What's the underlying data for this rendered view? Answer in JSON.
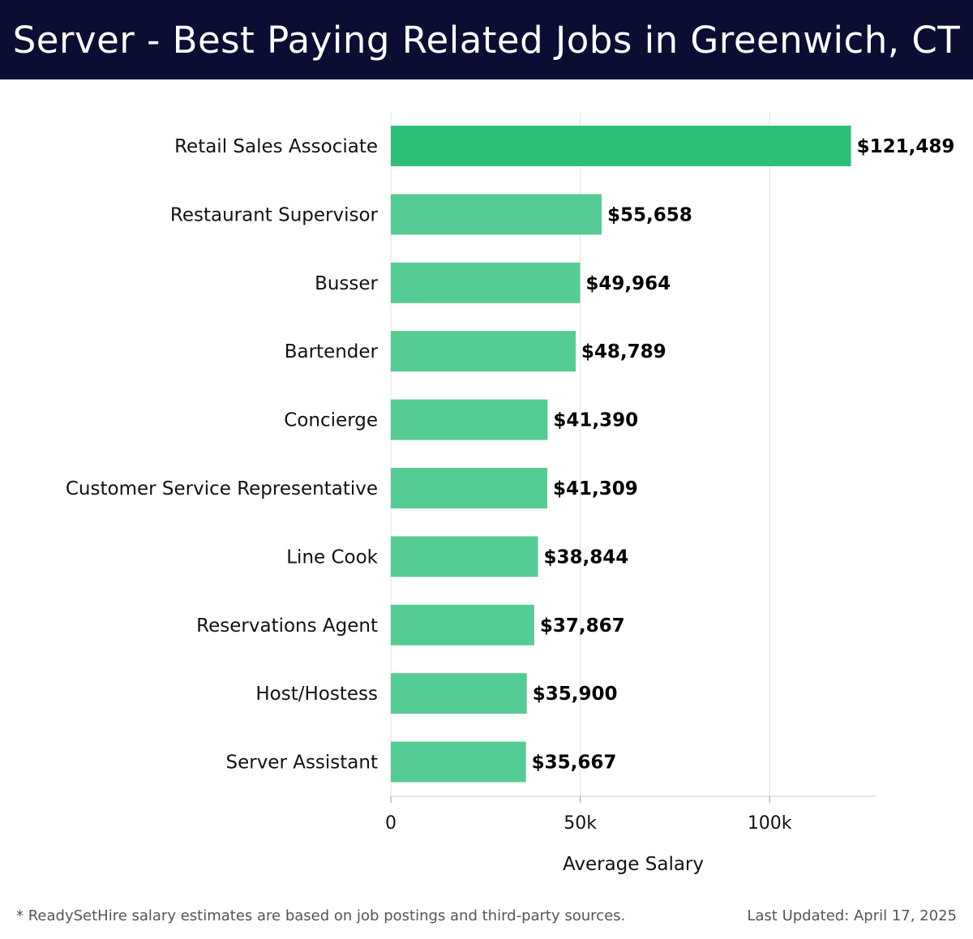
{
  "header": {
    "title": "Server - Best Paying Related Jobs in Greenwich, CT"
  },
  "chart_data": {
    "type": "bar",
    "orientation": "horizontal",
    "categories": [
      "Retail Sales Associate",
      "Restaurant Supervisor",
      "Busser",
      "Bartender",
      "Concierge",
      "Customer Service Representative",
      "Line Cook",
      "Reservations Agent",
      "Host/Hostess",
      "Server Assistant"
    ],
    "values": [
      121489,
      55658,
      49964,
      48789,
      41390,
      41309,
      38844,
      37867,
      35900,
      35667
    ],
    "value_labels": [
      "$121,489",
      "$55,658",
      "$49,964",
      "$48,789",
      "$41,390",
      "$41,309",
      "$38,844",
      "$37,867",
      "$35,900",
      "$35,667"
    ],
    "xlabel": "Average Salary",
    "ylabel": "",
    "xlim": [
      0,
      128000
    ],
    "xticks": [
      0,
      50000,
      100000
    ],
    "xtick_labels": [
      "0",
      "50k",
      "100k"
    ],
    "grid": "vertical",
    "colors": {
      "highlight": "#2dbf78",
      "bar": "#55cc94",
      "grid": "#e2e2e2"
    }
  },
  "footer": {
    "note": "* ReadySetHire salary estimates are based on job postings and third-party sources.",
    "updated": "Last Updated: April 17, 2025"
  }
}
